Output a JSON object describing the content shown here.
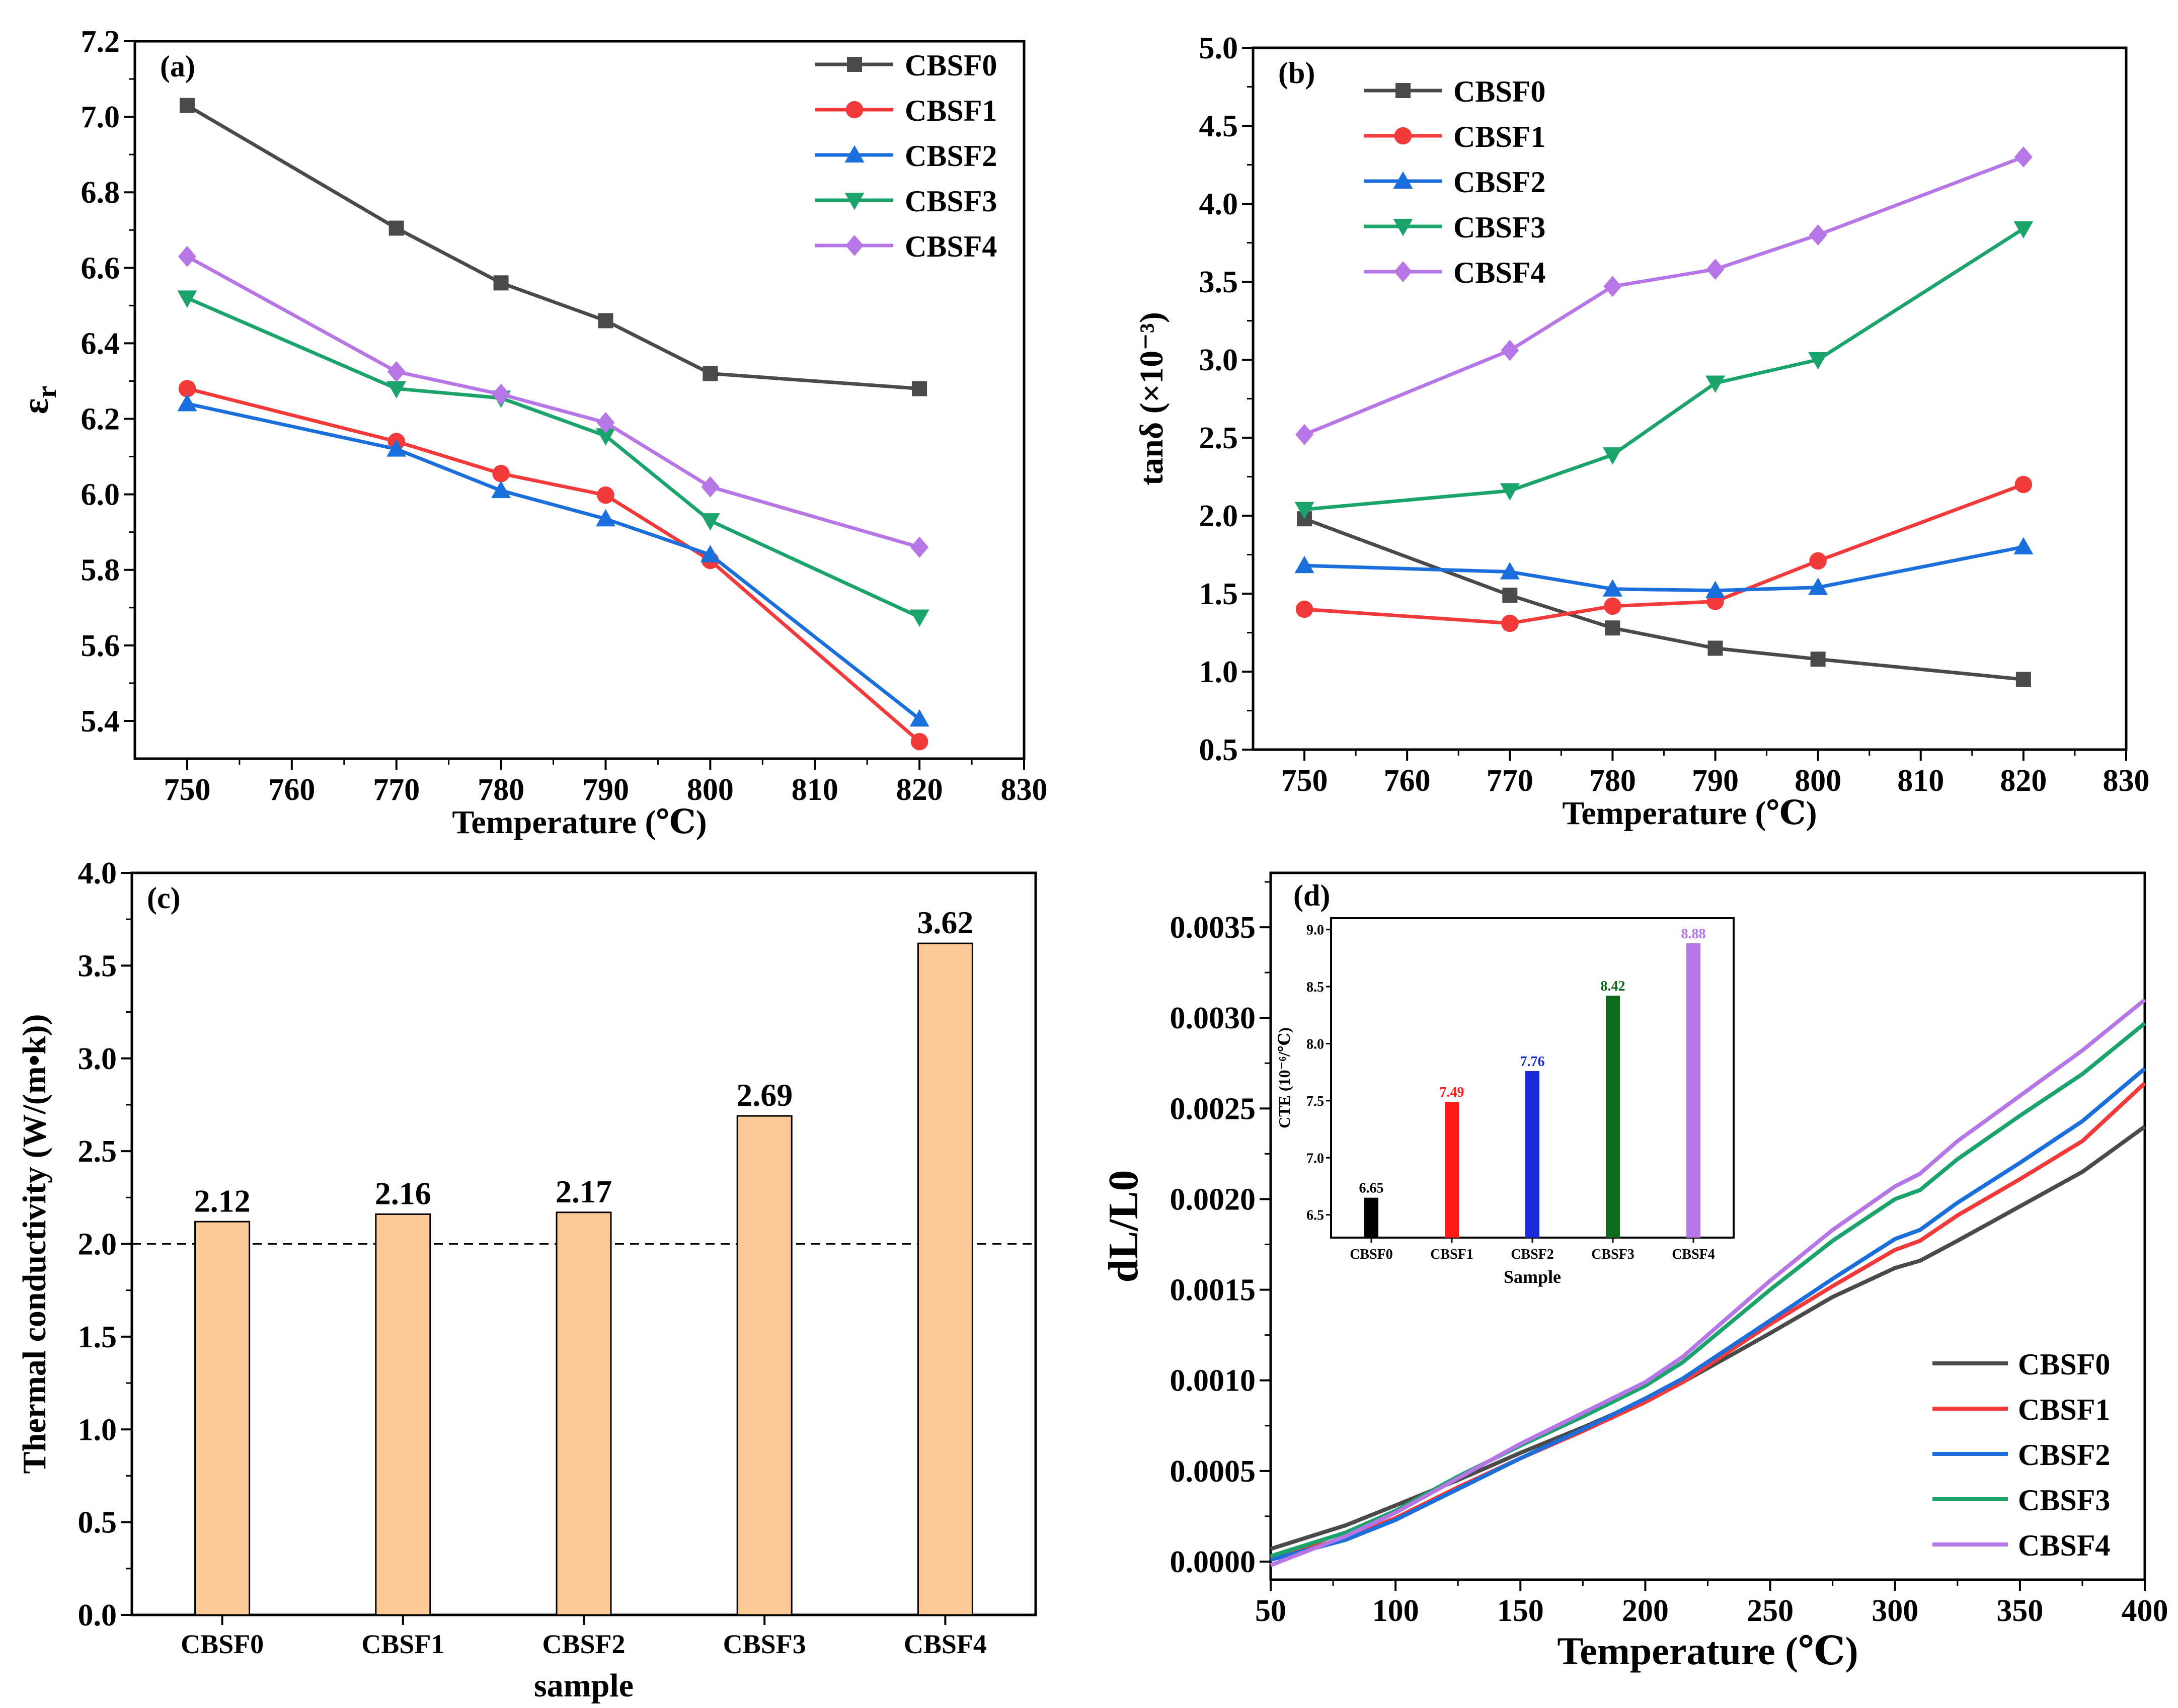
{
  "series_colors": {
    "CBSF0": "#4a4a4a",
    "CBSF1": "#f23a3a",
    "CBSF2": "#1a6fdc",
    "CBSF3": "#1aa36a",
    "CBSF4": "#b776e6"
  },
  "chart_data": [
    {
      "panel": "(a)",
      "type": "line",
      "xlabel": "Temperature (℃)",
      "ylabel": "εr",
      "xlim": [
        745,
        830
      ],
      "ylim": [
        5.3,
        7.2
      ],
      "xticks": [
        750,
        760,
        770,
        780,
        790,
        800,
        810,
        820,
        830
      ],
      "yticks": [
        5.4,
        5.6,
        5.8,
        6.0,
        6.2,
        6.4,
        6.6,
        6.8,
        7.0,
        7.2
      ],
      "legend_position": "top-right",
      "x": [
        750,
        770,
        780,
        790,
        800,
        820
      ],
      "series": [
        {
          "name": "CBSF0",
          "marker": "square",
          "values": [
            7.03,
            6.705,
            6.56,
            6.46,
            6.32,
            6.28
          ]
        },
        {
          "name": "CBSF1",
          "marker": "circle",
          "values": [
            6.28,
            6.14,
            6.055,
            5.998,
            5.825,
            5.345
          ]
        },
        {
          "name": "CBSF2",
          "marker": "triangle-up",
          "values": [
            6.24,
            6.12,
            6.01,
            5.935,
            5.84,
            5.405
          ]
        },
        {
          "name": "CBSF3",
          "marker": "triangle-down",
          "values": [
            6.52,
            6.28,
            6.255,
            6.155,
            5.93,
            5.675
          ]
        },
        {
          "name": "CBSF4",
          "marker": "diamond",
          "values": [
            6.63,
            6.325,
            6.265,
            6.19,
            6.02,
            5.86
          ]
        }
      ]
    },
    {
      "panel": "(b)",
      "type": "line",
      "xlabel": "Temperature (℃)",
      "ylabel": "tanδ (×10⁻³)",
      "xlim": [
        745,
        830
      ],
      "ylim": [
        0.5,
        5.0
      ],
      "xticks": [
        750,
        760,
        770,
        780,
        790,
        800,
        810,
        820,
        830
      ],
      "yticks": [
        0.5,
        1.0,
        1.5,
        2.0,
        2.5,
        3.0,
        3.5,
        4.0,
        4.5,
        5.0
      ],
      "legend_position": "top-left",
      "x": [
        750,
        770,
        780,
        790,
        800,
        820
      ],
      "series": [
        {
          "name": "CBSF0",
          "marker": "square",
          "values": [
            1.98,
            1.49,
            1.28,
            1.15,
            1.08,
            0.95
          ]
        },
        {
          "name": "CBSF1",
          "marker": "circle",
          "values": [
            1.4,
            1.31,
            1.42,
            1.45,
            1.71,
            2.2
          ]
        },
        {
          "name": "CBSF2",
          "marker": "triangle-up",
          "values": [
            1.68,
            1.64,
            1.53,
            1.52,
            1.54,
            1.8
          ]
        },
        {
          "name": "CBSF3",
          "marker": "triangle-down",
          "values": [
            2.04,
            2.16,
            2.39,
            2.85,
            3.0,
            3.84
          ]
        },
        {
          "name": "CBSF4",
          "marker": "diamond",
          "values": [
            2.52,
            3.06,
            3.47,
            3.58,
            3.8,
            4.3
          ]
        }
      ]
    },
    {
      "panel": "(c)",
      "type": "bar",
      "xlabel": "sample",
      "ylabel": "Thermal conductivity (W/(m•k))",
      "ylim": [
        0,
        4.0
      ],
      "yticks": [
        0.0,
        0.5,
        1.0,
        1.5,
        2.0,
        2.5,
        3.0,
        3.5,
        4.0
      ],
      "reference_line": 2.0,
      "bar_color": "#fcc896",
      "categories": [
        "CBSF0",
        "CBSF1",
        "CBSF2",
        "CBSF3",
        "CBSF4"
      ],
      "values": [
        2.12,
        2.16,
        2.17,
        2.69,
        3.62
      ],
      "value_labels": [
        "2.12",
        "2.16",
        "2.17",
        "2.69",
        "3.62"
      ]
    },
    {
      "panel": "(d)",
      "type": "line",
      "xlabel": "Temperature (℃)",
      "ylabel": "dL/L0",
      "xlim": [
        50,
        400
      ],
      "ylim": [
        -0.0001,
        0.0038
      ],
      "xticks": [
        50,
        100,
        150,
        200,
        250,
        300,
        350,
        400
      ],
      "yticks": [
        0.0,
        0.0005,
        0.001,
        0.0015,
        0.002,
        0.0025,
        0.003,
        0.0035
      ],
      "ytick_labels": [
        "0.0000",
        "0.0005",
        "0.0010",
        "0.0015",
        "0.0020",
        "0.0025",
        "0.0030",
        "0.0035"
      ],
      "legend_position": "bottom-right",
      "x": [
        50,
        80,
        100,
        125,
        150,
        175,
        200,
        215,
        250,
        275,
        300,
        310,
        325,
        350,
        375,
        400
      ],
      "series": [
        {
          "name": "CBSF0",
          "values": [
            7e-05,
            0.0002,
            0.00031,
            0.00045,
            0.0006,
            0.00074,
            0.00089,
            0.00099,
            0.00126,
            0.00146,
            0.00162,
            0.00166,
            0.00177,
            0.00196,
            0.00215,
            0.0024
          ]
        },
        {
          "name": "CBSF1",
          "values": [
            2e-05,
            0.00013,
            0.00024,
            0.00041,
            0.00057,
            0.00072,
            0.00088,
            0.00099,
            0.00131,
            0.00152,
            0.00172,
            0.00177,
            0.00191,
            0.00211,
            0.00232,
            0.00264
          ]
        },
        {
          "name": "CBSF2",
          "values": [
            1e-05,
            0.00012,
            0.00023,
            0.0004,
            0.00057,
            0.00073,
            0.0009,
            0.00101,
            0.00133,
            0.00156,
            0.00178,
            0.00183,
            0.00198,
            0.0022,
            0.00243,
            0.00272
          ]
        },
        {
          "name": "CBSF3",
          "values": [
            3e-05,
            0.00016,
            0.00028,
            0.00047,
            0.00064,
            0.0008,
            0.00097,
            0.0011,
            0.0015,
            0.00177,
            0.002,
            0.00205,
            0.00222,
            0.00246,
            0.00269,
            0.00297
          ]
        },
        {
          "name": "CBSF4",
          "values": [
            -2e-05,
            0.00014,
            0.00027,
            0.00046,
            0.00065,
            0.00082,
            0.00099,
            0.00113,
            0.00155,
            0.00183,
            0.00207,
            0.00214,
            0.00232,
            0.00257,
            0.00282,
            0.0031
          ]
        }
      ],
      "inset": {
        "type": "bar",
        "xlabel": "Sample",
        "ylabel": "CTE (10⁻⁶/℃)",
        "ylim": [
          6.3,
          9.1
        ],
        "yticks": [
          6.5,
          7.0,
          7.5,
          8.0,
          8.5,
          9.0
        ],
        "categories": [
          "CBSF0",
          "CBSF1",
          "CBSF2",
          "CBSF3",
          "CBSF4"
        ],
        "values": [
          6.65,
          7.49,
          7.76,
          8.42,
          8.88
        ],
        "value_labels": [
          "6.65",
          "7.49",
          "7.76",
          "8.42",
          "8.88"
        ],
        "colors": [
          "#000000",
          "#ff1a1a",
          "#1a2ad6",
          "#0b6b1a",
          "#b776e6"
        ]
      }
    }
  ]
}
